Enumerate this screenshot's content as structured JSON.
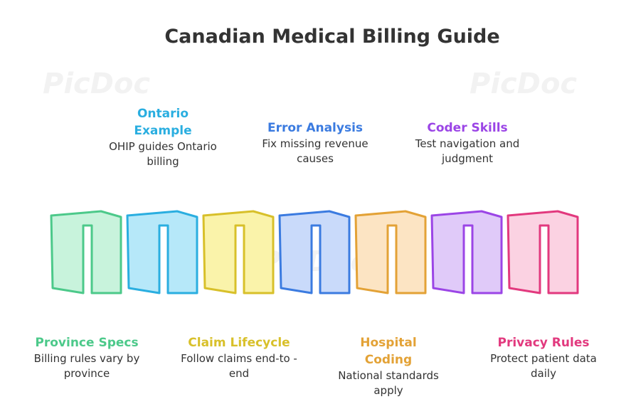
{
  "header": {
    "title": "Canadian Medical Billing Guide"
  },
  "watermark": "PicDoc",
  "steps": [
    {
      "title": "Province Specs",
      "description": "Billing rules vary by province"
    },
    {
      "title": "Ontario Example",
      "description": "OHIP guides Ontario billing"
    },
    {
      "title": "Claim Lifecycle",
      "description": "Follow claims end-to -end"
    },
    {
      "title": "Error Analysis",
      "description": "Fix missing revenue causes"
    },
    {
      "title": "Hospital Coding",
      "description": "National standards apply"
    },
    {
      "title": "Coder Skills",
      "description": "Test navigation and judgment"
    },
    {
      "title": "Privacy Rules",
      "description": "Protect patient data daily"
    }
  ]
}
